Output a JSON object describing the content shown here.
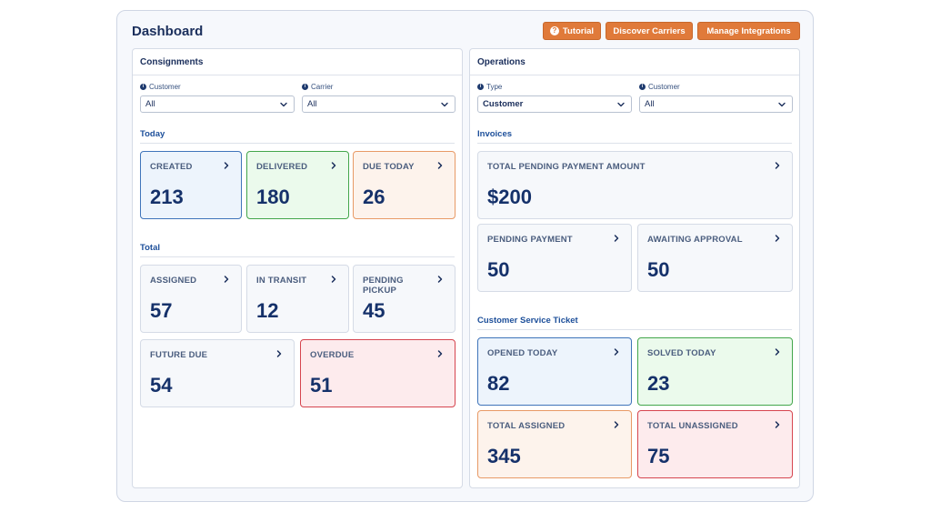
{
  "dashboard": {
    "title": "Dashboard",
    "buttons": {
      "tutorial": "Tutorial",
      "discover_carriers": "Discover Carriers",
      "manage_integrations": "Manage Integrations"
    }
  },
  "consignments": {
    "title": "Consignments",
    "filters": {
      "customer": {
        "label": "Customer",
        "value": "All"
      },
      "carrier": {
        "label": "Carrier",
        "value": "All"
      }
    },
    "today": {
      "title": "Today",
      "cards": {
        "created": {
          "label": "CREATED",
          "value": "213"
        },
        "delivered": {
          "label": "DELIVERED",
          "value": "180"
        },
        "due_today": {
          "label": "DUE TODAY",
          "value": "26"
        }
      }
    },
    "total": {
      "title": "Total",
      "cards": {
        "assigned": {
          "label": "ASSIGNED",
          "value": "57"
        },
        "in_transit": {
          "label": "IN TRANSIT",
          "value": "12"
        },
        "pending_pickup": {
          "label": "PENDING PICKUP",
          "value": "45"
        },
        "future_due": {
          "label": "FUTURE DUE",
          "value": "54"
        },
        "overdue": {
          "label": "OVERDUE",
          "value": "51"
        }
      }
    }
  },
  "operations": {
    "title": "Operations",
    "filters": {
      "type": {
        "label": "Type",
        "value": "Customer"
      },
      "customer": {
        "label": "Customer",
        "value": "All"
      }
    },
    "invoices": {
      "title": "Invoices",
      "cards": {
        "total_pending_amount": {
          "label": "TOTAL PENDING PAYMENT AMOUNT",
          "value": "$200"
        },
        "pending_payment": {
          "label": "PENDING PAYMENT",
          "value": "50"
        },
        "awaiting_approval": {
          "label": "AWAITING APPROVAL",
          "value": "50"
        }
      }
    },
    "tickets": {
      "title": "Customer Service Ticket",
      "cards": {
        "opened_today": {
          "label": "OPENED TODAY",
          "value": "82"
        },
        "solved_today": {
          "label": "SOLVED TODAY",
          "value": "23"
        },
        "total_assigned": {
          "label": "TOTAL ASSIGNED",
          "value": "345"
        },
        "total_unassigned": {
          "label": "TOTAL UNASSIGNED",
          "value": "75"
        }
      }
    }
  },
  "icons": [
    "question-icon",
    "info-icon",
    "chevron-down-icon",
    "chevron-right-icon"
  ],
  "colors": {
    "accent": "#e07a3a",
    "primary_text": "#15316a",
    "section_title": "#1d4f9a",
    "blue_border": "#3f74ba",
    "green_border": "#43a64b",
    "orange_border": "#e89a66",
    "red_border": "#d6454f"
  }
}
